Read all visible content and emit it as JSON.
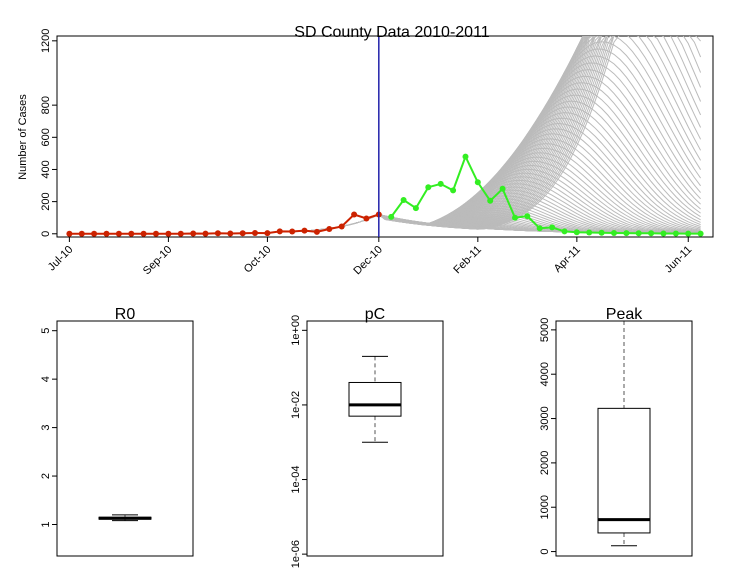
{
  "chart_data": [
    {
      "type": "line",
      "title": "SD County Data 2010-2011",
      "ylabel": "Number of Cases",
      "xlabel": "",
      "x_tick_labels": [
        "Jul-10",
        "Sep-10",
        "Oct-10",
        "Dec-10",
        "Feb-11",
        "Apr-11",
        "Jun-11"
      ],
      "x_tick_weeks": [
        0,
        8,
        16,
        25,
        33,
        41,
        50
      ],
      "y_ticks": [
        0,
        200,
        400,
        600,
        800,
        1200
      ],
      "ylim": [
        -20,
        1230
      ],
      "xlim": [
        -1,
        52
      ],
      "cutoff_week": 25,
      "grid": false,
      "legend": "none",
      "series": [
        {
          "role": "observed-fit",
          "color": "#cc2200",
          "x": [
            0,
            1,
            2,
            3,
            4,
            5,
            6,
            7,
            8,
            9,
            10,
            11,
            12,
            13,
            14,
            15,
            16,
            17,
            18,
            19,
            20,
            21,
            22,
            23,
            24,
            25
          ],
          "y": [
            0,
            0,
            0,
            0,
            0,
            0,
            0,
            0,
            0,
            0,
            2,
            1,
            3,
            2,
            3,
            5,
            4,
            15,
            14,
            20,
            12,
            30,
            45,
            120,
            95,
            120
          ]
        },
        {
          "role": "observed-holdout",
          "color": "#33ee22",
          "x": [
            26,
            27,
            28,
            29,
            30,
            31,
            32,
            33,
            34,
            35,
            36,
            37,
            38,
            39,
            40,
            41,
            42,
            43,
            44,
            45,
            46,
            47,
            48,
            49,
            50,
            51
          ],
          "y": [
            105,
            210,
            160,
            290,
            310,
            270,
            480,
            320,
            205,
            280,
            100,
            110,
            35,
            40,
            15,
            10,
            8,
            6,
            5,
            4,
            3,
            3,
            2,
            2,
            1,
            1
          ]
        }
      ],
      "projection_band": {
        "color": "#bbbbbb",
        "count": 90
      }
    },
    {
      "type": "boxplot",
      "title": "R0",
      "y_ticks": [
        1,
        2,
        3,
        4,
        5
      ],
      "ylim": [
        0.35,
        5.2
      ],
      "box": {
        "whisker_low": 1.08,
        "q1": 1.11,
        "median": 1.13,
        "q3": 1.15,
        "whisker_high": 1.2
      }
    },
    {
      "type": "boxplot",
      "title": "pC",
      "scale": "log",
      "y_ticks": [
        "1e+00",
        "1e-02",
        "1e-04",
        "1e-06"
      ],
      "box": {
        "whisker_low": "1e-03",
        "q1": "5e-03",
        "median": "1e-02",
        "q3": "4e-02",
        "whisker_high": "2e-01"
      }
    },
    {
      "type": "boxplot",
      "title": "Peak",
      "y_ticks": [
        0,
        1000,
        2000,
        3000,
        4000,
        5000
      ],
      "ylim": [
        -100,
        5200
      ],
      "box": {
        "whisker_low": 130,
        "q1": 420,
        "median": 720,
        "q3": 3230,
        "whisker_high": 5200
      }
    }
  ]
}
